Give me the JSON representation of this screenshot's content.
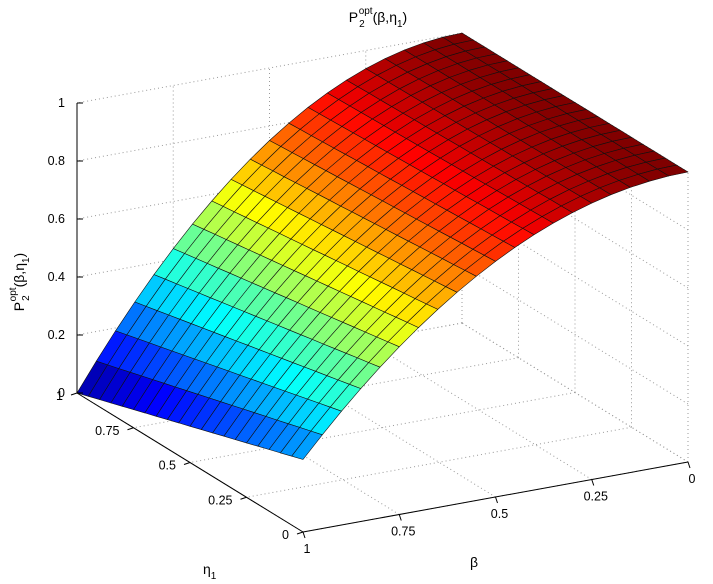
{
  "chart_data": {
    "type": "surface",
    "title": {
      "base": "P",
      "sub": "2",
      "sup": "opt",
      "args": "(β,η",
      "args_sub": "1",
      "close": ")"
    },
    "zlabel": {
      "base": "P",
      "sub": "2",
      "sup": "opt",
      "args": "(β,η",
      "args_sub": "1",
      "close": ")"
    },
    "xlabel": "β",
    "ylabel": {
      "base": "η",
      "sub": "1"
    },
    "xlim": [
      0,
      1
    ],
    "ylim": [
      0,
      1
    ],
    "zlim": [
      0,
      1
    ],
    "x_ticks": [
      "0",
      "0.25",
      "0.5",
      "0.75",
      "1"
    ],
    "y_ticks": [
      "0",
      "0.25",
      "0.5",
      "0.75",
      "1"
    ],
    "z_ticks": [
      "0",
      "0.2",
      "0.4",
      "0.6",
      "0.8",
      "1"
    ],
    "grid": true,
    "colormap": "jet",
    "mesh_resolution": 20,
    "surface_description": "Z(beta, eta1) = 1 - beta^2 * (1 - 0.25 * (1 - eta1)); equals 1 at beta=0, approaches 0 at beta=1, eta1=1 and 0.25 at beta=1, eta1=0",
    "edge_values": {
      "beta_0": {
        "eta1_0": 1.0,
        "eta1_1": 1.0
      },
      "beta_1": {
        "eta1_0": 0.25,
        "eta1_1": 0.0
      }
    }
  }
}
